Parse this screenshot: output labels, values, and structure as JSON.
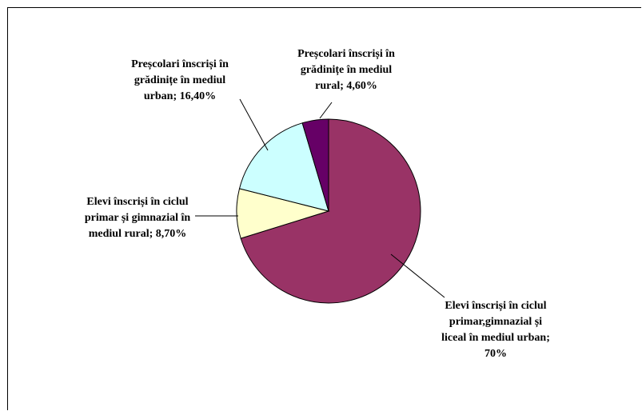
{
  "chart_data": {
    "type": "pie",
    "start_angle_deg": 90,
    "direction": "clockwise",
    "slices": [
      {
        "label": "Elevi înscriși în ciclul\nprimar,gimnazial și\nliceal în mediul urban;\n70%",
        "value": 70,
        "color": "#993366"
      },
      {
        "label": "Elevi înscriși în ciclul\nprimar și gimnazial în\nmediul rural; 8,70%",
        "value": 8.7,
        "color": "#FFFFCC"
      },
      {
        "label": "Preșcolari înscriși în\ngrădinițe în mediul\nurban; 16,40%",
        "value": 16.4,
        "color": "#CCFFFF"
      },
      {
        "label": "Preșcolari înscriși în\ngrădinițe în mediul\nrural; 4,60%",
        "value": 4.6,
        "color": "#660066"
      }
    ]
  }
}
